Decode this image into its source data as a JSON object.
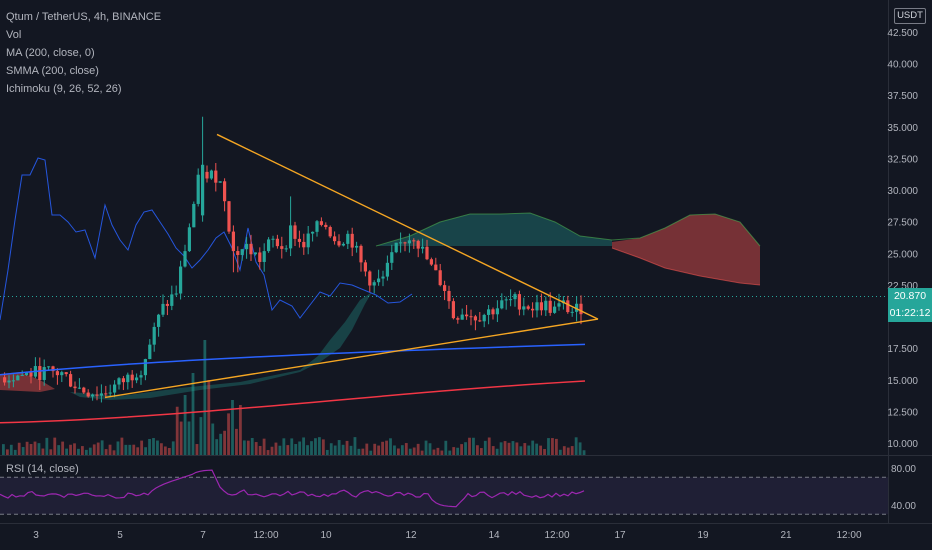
{
  "legend": {
    "symbol": "Qtum / TetherUS, 4h, BINANCE",
    "vol": "Vol",
    "ma": "MA (200, close, 0)",
    "smma": "SMMA (200, close)",
    "ichimoku": "Ichimoku (9, 26, 52, 26)",
    "rsi": "RSI (14, close)"
  },
  "price_axis": {
    "currency": "USDT",
    "ticks": [
      "42.500",
      "40.000",
      "37.500",
      "35.000",
      "32.500",
      "30.000",
      "27.500",
      "25.000",
      "22.500",
      "17.500",
      "15.000",
      "12.500",
      "10.000"
    ],
    "last_price": "20.870",
    "countdown": "01:22:12"
  },
  "rsi_axis": {
    "ticks": [
      "80.00",
      "40.00"
    ]
  },
  "time_axis": {
    "ticks": [
      "3",
      "5",
      "7",
      "12:00",
      "10",
      "12",
      "14",
      "12:00",
      "17",
      "19",
      "21",
      "12:00"
    ]
  },
  "colors": {
    "background": "#131722",
    "up": "#26a69a",
    "down": "#ef5350",
    "trendline": "#f5a623",
    "ma": "#2962ff",
    "smma": "#f23645",
    "rsi_line": "#9c27b0"
  },
  "chart_data": {
    "type": "candlestick",
    "ylim": [
      9.5,
      43.2
    ],
    "series": [
      {
        "name": "MA (200, close, 0)",
        "values_start": 15.4,
        "values_end": 17.8
      },
      {
        "name": "SMMA (200, close)",
        "values_start": 11.6,
        "values_end": 14.9
      }
    ],
    "trendlines": [
      {
        "from": 34.4,
        "to": 19.8
      },
      {
        "from": 13.6,
        "to": 19.8
      }
    ],
    "last_price": 20.87,
    "rsi_ylim": [
      20,
      100
    ]
  }
}
